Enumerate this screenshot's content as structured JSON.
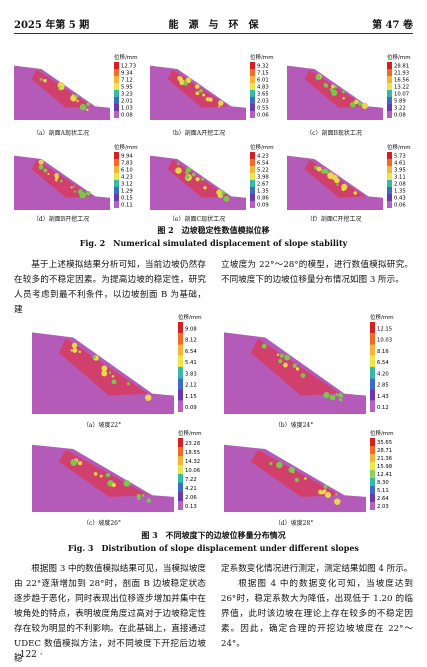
{
  "header": {
    "left": "2025 年第 5 期",
    "center": "能　源　与　环　保",
    "right": "第 47 卷"
  },
  "figure2": {
    "panels": [
      {
        "label": "（a）剖面A现状工况",
        "legend_title": "位移/mm",
        "legend": [
          "12.73",
          "9.34",
          "7.12",
          "5.95",
          "3.23",
          "2.01",
          "1.03",
          "0.08"
        ]
      },
      {
        "label": "（b）剖面A开挖工况",
        "legend_title": "位移/mm",
        "legend": [
          "9.32",
          "7.15",
          "6.01",
          "4.83",
          "3.65",
          "2.03",
          "0.55",
          "0.06"
        ]
      },
      {
        "label": "（c）剖面B现状工况",
        "legend_title": "位移/mm",
        "legend": [
          "28.81",
          "21.93",
          "16.56",
          "13.22",
          "10.07",
          "5.89",
          "3.22",
          "0.08"
        ]
      },
      {
        "label": "（d）剖面B开挖工况",
        "legend_title": "位移/mm",
        "legend": [
          "9.94",
          "7.83",
          "6.10",
          "4.23",
          "3.12",
          "1.29",
          "0.15",
          "0.11"
        ]
      },
      {
        "label": "（e）剖面C现状工况",
        "legend_title": "位移/mm",
        "legend": [
          "4.23",
          "6.54",
          "5.22",
          "3.98",
          "2.67",
          "1.35",
          "0.86",
          "0.09"
        ]
      },
      {
        "label": "（f）剖面C开挖工况",
        "legend_title": "位移/mm",
        "legend": [
          "5.73",
          "4.61",
          "3.95",
          "3.11",
          "2.08",
          "1.35",
          "0.43",
          "0.06"
        ]
      }
    ],
    "caption_cn": "图 2　边坡稳定性数值模拟位移",
    "caption_en": "Fig. 2　Numerical simulated displacement of slope stability"
  },
  "para1": {
    "left": "基于上述模拟结果分析可知，当前边坡仍然存在较多的不稳定因素。为提高边坡的稳定性，研究人员考虑到最不利条件，以边坡剖面 B 为基础，建",
    "right": "立坡度为 22°～28°的模型，进行数值模拟研究。不同坡度下的边坡位移量分布情况如图 3 所示。"
  },
  "figure3": {
    "panels": [
      {
        "label": "（a）坡度22°",
        "legend_title": "位移/mm",
        "legend": [
          "9.08",
          "8.12",
          "6.54",
          "5.41",
          "3.83",
          "2.12",
          "1.15",
          "0.09"
        ]
      },
      {
        "label": "（b）坡度24°",
        "legend_title": "位移/mm",
        "legend": [
          "12.15",
          "10.03",
          "8.16",
          "6.54",
          "4.20",
          "2.85",
          "1.43",
          "0.12"
        ]
      },
      {
        "label": "（c）坡度26°",
        "legend_title": "位移/mm",
        "legend": [
          "23.28",
          "18.55",
          "14.32",
          "10.06",
          "7.22",
          "4.21",
          "2.06",
          "0.13"
        ]
      },
      {
        "label": "（d）坡度28°",
        "legend_title": "位移/mm",
        "legend": [
          "35.65",
          "28.71",
          "21.36",
          "15.98",
          "12.41",
          "8.30",
          "5.11",
          "2.64",
          "2.03"
        ]
      }
    ],
    "caption_cn": "图 3　不同坡度下的边坡位移量分布情况",
    "caption_en": "Fig. 3　Distribution of slope displacement under different slopes"
  },
  "para2": {
    "left": "根据图 3 中的数值模拟结果可见，当模拟坡度由 22°逐渐增加到 28°时，剖面 B 边坡稳定状态逐步趋于恶化，同时表现出位移逐步增加并集中在坡角处的特点，表明坡度角度过高对于边坡稳定性存在较为明显的不利影响。在此基础上，直接通过 UDEC 数值模拟方法，对不同坡度下开挖后边坡稳",
    "right1": "定系数变化情况进行测定，测定结果如图 4 所示。",
    "right2": "根据图 4 中的数据变化可知，当坡度达到 26°时，稳定系数大为降低，出现低于 1.20 的临界值，此时该边坡在理论上存在较多的不稳定因素。因此，确定合理的开挖边坡坡度在 22°～24°。"
  },
  "footer": "· 122 ·"
}
